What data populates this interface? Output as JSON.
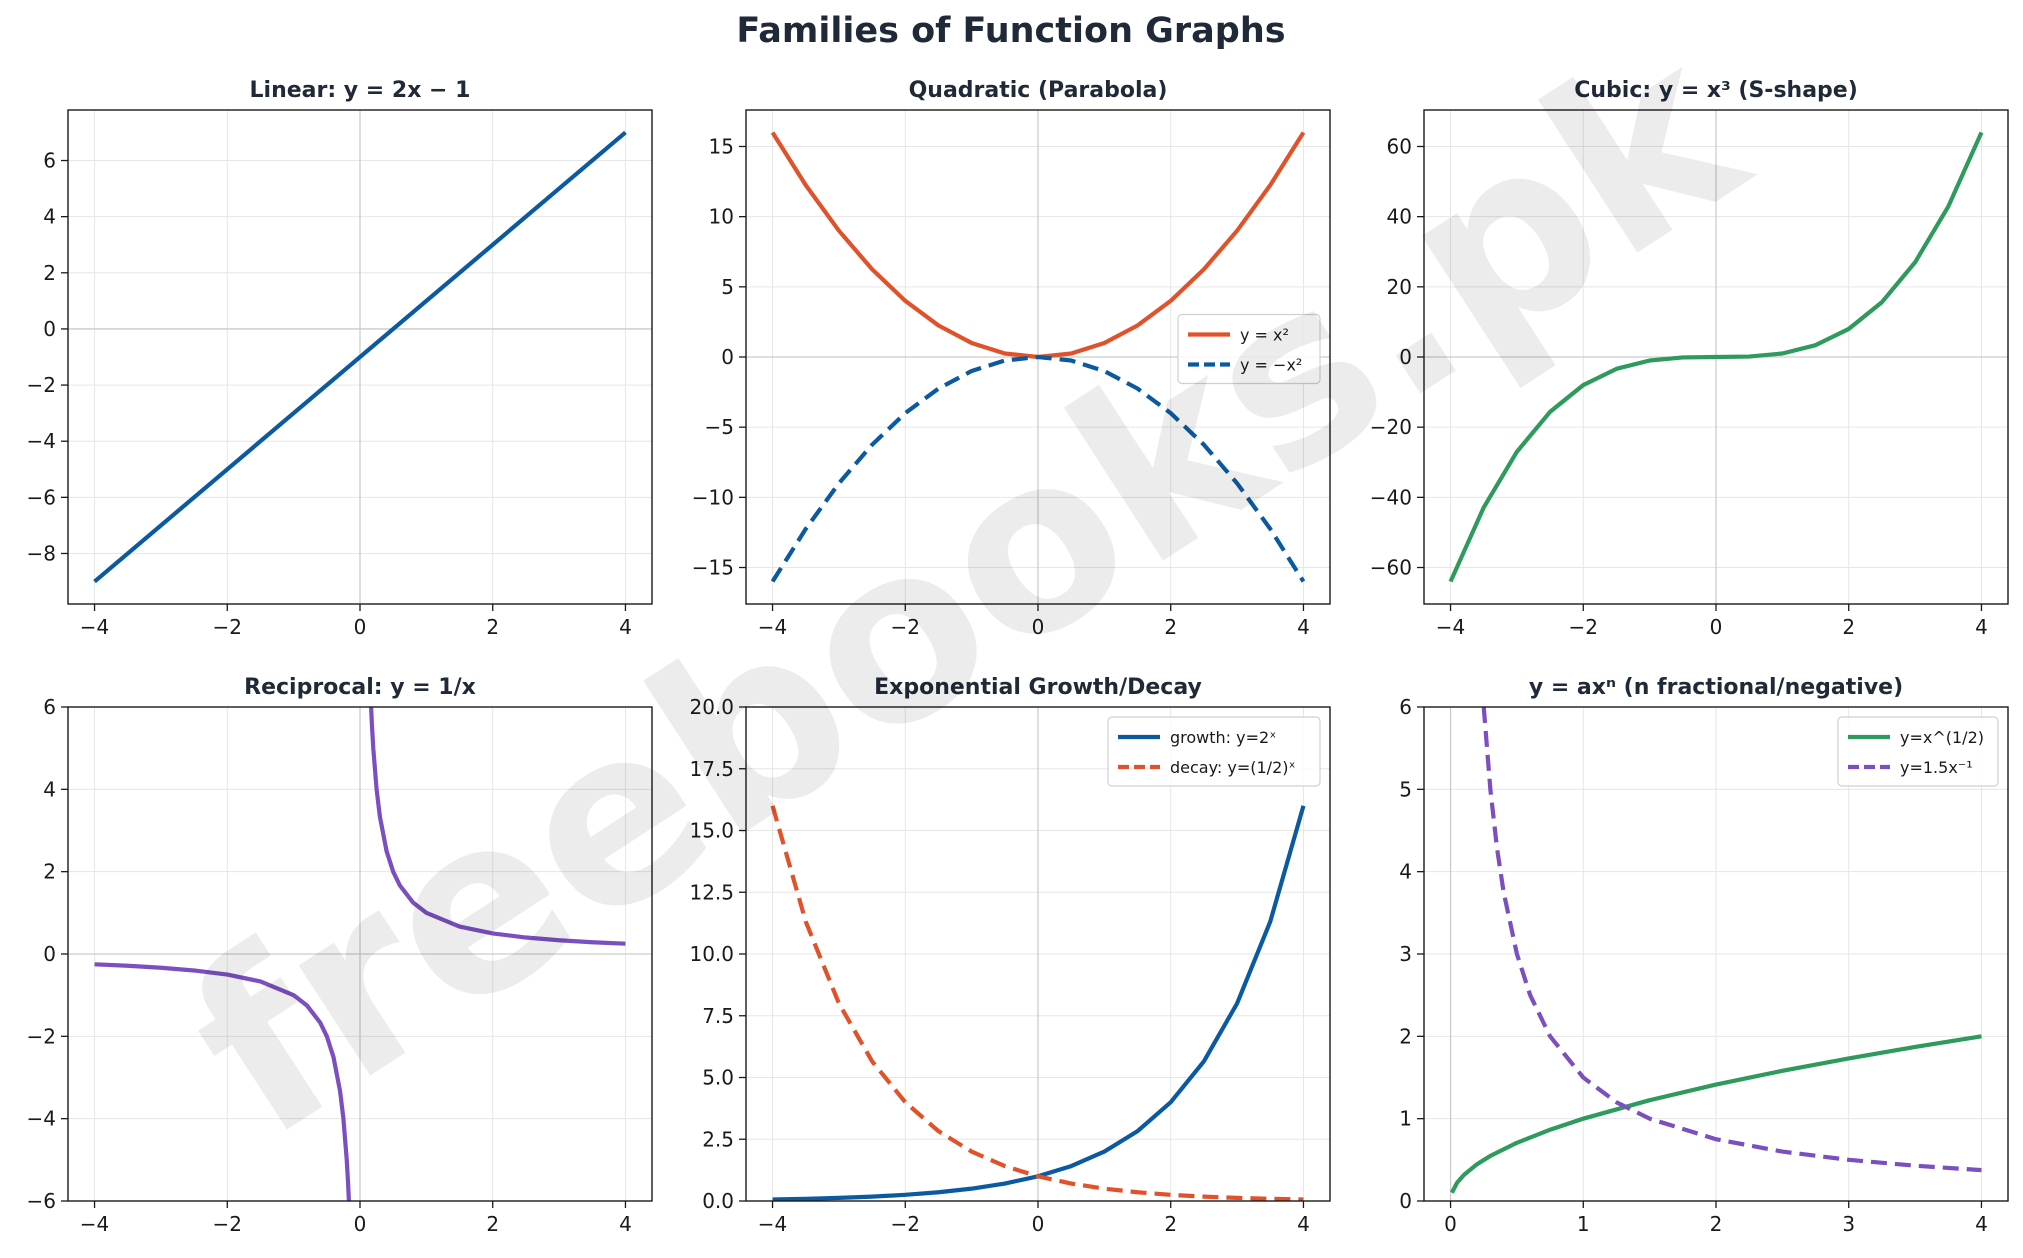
{
  "figure": {
    "title": "Families of Function Graphs"
  },
  "watermark": {
    "text": "freebooks.pk"
  },
  "colors": {
    "blue": "#0b5aa0",
    "orange": "#e0522a",
    "green": "#2e9a5c",
    "purple": "#7b4fbf",
    "grid": "#e6e6e6",
    "zeroline": "#cccccc"
  },
  "chart_data": [
    {
      "id": "linear",
      "type": "line",
      "title": "Linear: y = 2x − 1",
      "xlim": [
        -4.4,
        4.4
      ],
      "ylim": [
        -9.8,
        7.8
      ],
      "xticks": [
        -4,
        -2,
        0,
        2,
        4
      ],
      "yticks": [
        -8,
        -6,
        -4,
        -2,
        0,
        2,
        4,
        6
      ],
      "xtick_labels": [
        "−4",
        "−2",
        "0",
        "2",
        "4"
      ],
      "ytick_labels": [
        "−8",
        "−6",
        "−4",
        "−2",
        "0",
        "2",
        "4",
        "6"
      ],
      "grid": true,
      "zero_lines": true,
      "series": [
        {
          "color": "#0b5aa0",
          "dashed": false,
          "x": [
            -4,
            4
          ],
          "y": [
            -9,
            7
          ]
        }
      ]
    },
    {
      "id": "quadratic",
      "type": "line",
      "title": "Quadratic (Parabola)",
      "xlim": [
        -4.4,
        4.4
      ],
      "ylim": [
        -17.6,
        17.6
      ],
      "xticks": [
        -4,
        -2,
        0,
        2,
        4
      ],
      "yticks": [
        -15,
        -10,
        -5,
        0,
        5,
        10,
        15
      ],
      "xtick_labels": [
        "−4",
        "−2",
        "0",
        "2",
        "4"
      ],
      "ytick_labels": [
        "−15",
        "−10",
        "−5",
        "0",
        "5",
        "10",
        "15"
      ],
      "grid": true,
      "zero_lines": true,
      "legend": "center-right",
      "series": [
        {
          "name": "y = x²",
          "color": "#e0522a",
          "dashed": false,
          "x": [
            -4,
            -3.5,
            -3,
            -2.5,
            -2,
            -1.5,
            -1,
            -0.5,
            0,
            0.5,
            1,
            1.5,
            2,
            2.5,
            3,
            3.5,
            4
          ],
          "y": [
            16,
            12.25,
            9,
            6.25,
            4,
            2.25,
            1,
            0.25,
            0,
            0.25,
            1,
            2.25,
            4,
            6.25,
            9,
            12.25,
            16
          ]
        },
        {
          "name": "y = −x²",
          "color": "#0b5aa0",
          "dashed": true,
          "x": [
            -4,
            -3.5,
            -3,
            -2.5,
            -2,
            -1.5,
            -1,
            -0.5,
            0,
            0.5,
            1,
            1.5,
            2,
            2.5,
            3,
            3.5,
            4
          ],
          "y": [
            -16,
            -12.25,
            -9,
            -6.25,
            -4,
            -2.25,
            -1,
            -0.25,
            0,
            -0.25,
            -1,
            -2.25,
            -4,
            -6.25,
            -9,
            -12.25,
            -16
          ]
        }
      ]
    },
    {
      "id": "cubic",
      "type": "line",
      "title": "Cubic: y = x³ (S-shape)",
      "xlim": [
        -4.4,
        4.4
      ],
      "ylim": [
        -70.4,
        70.4
      ],
      "xticks": [
        -4,
        -2,
        0,
        2,
        4
      ],
      "yticks": [
        -60,
        -40,
        -20,
        0,
        20,
        40,
        60
      ],
      "xtick_labels": [
        "−4",
        "−2",
        "0",
        "2",
        "4"
      ],
      "ytick_labels": [
        "−60",
        "−40",
        "−20",
        "0",
        "20",
        "40",
        "60"
      ],
      "grid": true,
      "zero_lines": true,
      "series": [
        {
          "color": "#2e9a5c",
          "dashed": false,
          "x": [
            -4,
            -3.5,
            -3,
            -2.5,
            -2,
            -1.5,
            -1,
            -0.5,
            0,
            0.5,
            1,
            1.5,
            2,
            2.5,
            3,
            3.5,
            4
          ],
          "y": [
            -64,
            -42.875,
            -27,
            -15.625,
            -8,
            -3.375,
            -1,
            -0.125,
            0,
            0.125,
            1,
            3.375,
            8,
            15.625,
            27,
            42.875,
            64
          ]
        }
      ]
    },
    {
      "id": "reciprocal",
      "type": "line",
      "title": "Reciprocal: y = 1/x",
      "xlim": [
        -4.4,
        4.4
      ],
      "ylim": [
        -6,
        6
      ],
      "xticks": [
        -4,
        -2,
        0,
        2,
        4
      ],
      "yticks": [
        -6,
        -4,
        -2,
        0,
        2,
        4,
        6
      ],
      "xtick_labels": [
        "−4",
        "−2",
        "0",
        "2",
        "4"
      ],
      "ytick_labels": [
        "−6",
        "−4",
        "−2",
        "0",
        "2",
        "4",
        "6"
      ],
      "grid": true,
      "zero_lines": true,
      "series": [
        {
          "color": "#7b4fbf",
          "dashed": false,
          "x": [
            -4,
            -3.5,
            -3,
            -2.5,
            -2,
            -1.5,
            -1,
            -0.8,
            -0.6,
            -0.5,
            -0.4,
            -0.3,
            -0.25,
            -0.2,
            -0.18,
            -0.16
          ],
          "y": [
            -0.25,
            -0.2857,
            -0.3333,
            -0.4,
            -0.5,
            -0.6667,
            -1,
            -1.25,
            -1.6667,
            -2,
            -2.5,
            -3.3333,
            -4,
            -5,
            -5.5556,
            -6.25
          ]
        },
        {
          "color": "#7b4fbf",
          "dashed": false,
          "x": [
            0.16,
            0.18,
            0.2,
            0.25,
            0.3,
            0.4,
            0.5,
            0.6,
            0.8,
            1,
            1.5,
            2,
            2.5,
            3,
            3.5,
            4
          ],
          "y": [
            6.25,
            5.5556,
            5,
            4,
            3.3333,
            2.5,
            2,
            1.6667,
            1.25,
            1,
            0.6667,
            0.5,
            0.4,
            0.3333,
            0.2857,
            0.25
          ]
        }
      ]
    },
    {
      "id": "exponential",
      "type": "line",
      "title": "Exponential Growth/Decay",
      "xlim": [
        -4.4,
        4.4
      ],
      "ylim": [
        0,
        20
      ],
      "xticks": [
        -4,
        -2,
        0,
        2,
        4
      ],
      "yticks": [
        0,
        2.5,
        5,
        7.5,
        10,
        12.5,
        15,
        17.5,
        20
      ],
      "xtick_labels": [
        "−4",
        "−2",
        "0",
        "2",
        "4"
      ],
      "ytick_labels": [
        "0.0",
        "2.5",
        "5.0",
        "7.5",
        "10.0",
        "12.5",
        "15.0",
        "17.5",
        "20.0"
      ],
      "grid": true,
      "zero_lines": true,
      "legend": "top-right",
      "series": [
        {
          "name": "growth: y=2ˣ",
          "color": "#0b5aa0",
          "dashed": false,
          "x": [
            -4,
            -3.5,
            -3,
            -2.5,
            -2,
            -1.5,
            -1,
            -0.5,
            0,
            0.5,
            1,
            1.5,
            2,
            2.5,
            3,
            3.5,
            4
          ],
          "y": [
            0.0625,
            0.0884,
            0.125,
            0.1768,
            0.25,
            0.3536,
            0.5,
            0.7071,
            1,
            1.4142,
            2,
            2.8284,
            4,
            5.6569,
            8,
            11.3137,
            16
          ]
        },
        {
          "name": "decay: y=(1/2)ˣ",
          "color": "#e0522a",
          "dashed": true,
          "x": [
            -4,
            -3.5,
            -3,
            -2.5,
            -2,
            -1.5,
            -1,
            -0.5,
            0,
            0.5,
            1,
            1.5,
            2,
            2.5,
            3,
            3.5,
            4
          ],
          "y": [
            16,
            11.3137,
            8,
            5.6569,
            4,
            2.8284,
            2,
            1.4142,
            1,
            0.7071,
            0.5,
            0.3536,
            0.25,
            0.1768,
            0.125,
            0.0884,
            0.0625
          ]
        }
      ]
    },
    {
      "id": "power",
      "type": "line",
      "title": "y = axⁿ (n fractional/negative)",
      "xlim": [
        -0.2,
        4.2
      ],
      "ylim": [
        0,
        6
      ],
      "xticks": [
        0,
        1,
        2,
        3,
        4
      ],
      "yticks": [
        0,
        1,
        2,
        3,
        4,
        5,
        6
      ],
      "xtick_labels": [
        "0",
        "1",
        "2",
        "3",
        "4"
      ],
      "ytick_labels": [
        "0",
        "1",
        "2",
        "3",
        "4",
        "5",
        "6"
      ],
      "grid": true,
      "zero_lines": true,
      "legend": "top-right",
      "series": [
        {
          "name": "y=x^(1/2)",
          "color": "#2e9a5c",
          "dashed": false,
          "x": [
            0.01,
            0.05,
            0.1,
            0.2,
            0.3,
            0.5,
            0.75,
            1,
            1.5,
            2,
            2.5,
            3,
            3.5,
            4
          ],
          "y": [
            0.1,
            0.2236,
            0.3162,
            0.4472,
            0.5477,
            0.7071,
            0.866,
            1,
            1.2247,
            1.4142,
            1.5811,
            1.7321,
            1.8708,
            2
          ]
        },
        {
          "name": "y=1.5x⁻¹",
          "color": "#7b4fbf",
          "dashed": true,
          "x": [
            0.25,
            0.3,
            0.35,
            0.4,
            0.5,
            0.6,
            0.75,
            1,
            1.25,
            1.5,
            2,
            2.5,
            3,
            3.5,
            4
          ],
          "y": [
            6,
            5,
            4.2857,
            3.75,
            3,
            2.5,
            2,
            1.5,
            1.2,
            1,
            0.75,
            0.6,
            0.5,
            0.4286,
            0.375
          ]
        }
      ]
    }
  ]
}
